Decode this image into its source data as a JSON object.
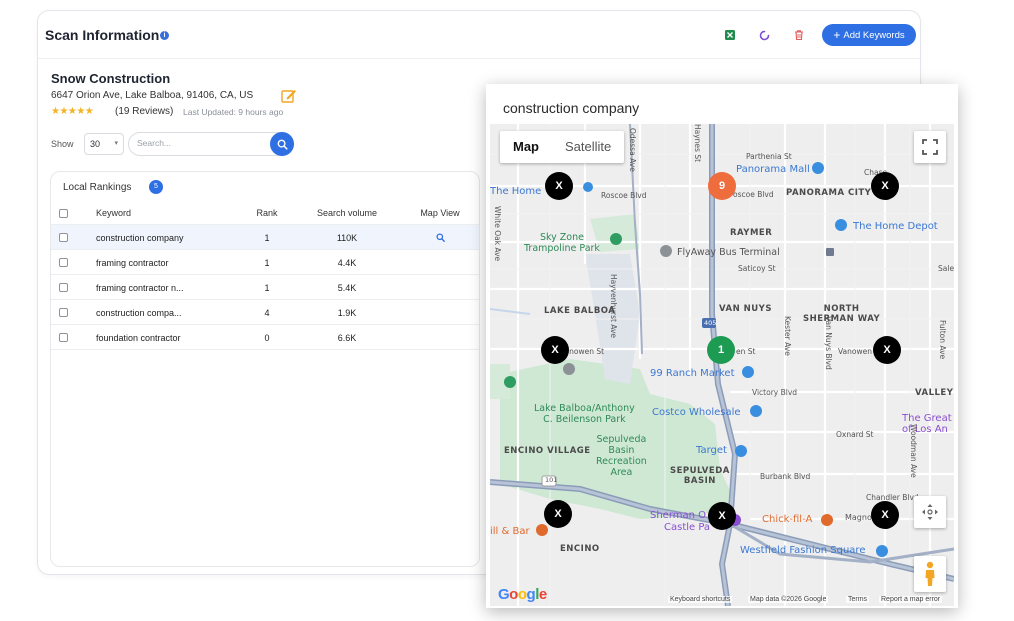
{
  "header": {
    "title": "Scan Information",
    "info_glyph": "i",
    "add_keywords_label": "Add Keywords",
    "add_icon": "+",
    "icons": [
      "excel-icon",
      "refresh-icon",
      "trash-icon"
    ]
  },
  "business": {
    "name": "Snow Construction",
    "address": "6647 Orion Ave, Lake Balboa, 91406, CA, US",
    "rating_stars": "★★★★★",
    "rating": 4.5,
    "reviews": "(19 Reviews)",
    "last_updated": "Last Updated: 9 hours ago"
  },
  "controls": {
    "show_label": "Show",
    "show_value": "30",
    "caret": "▾",
    "search_placeholder": "Search..."
  },
  "rankings": {
    "title": "Local Rankings",
    "count": "5",
    "columns": {
      "keyword": "Keyword",
      "rank": "Rank",
      "volume": "Search volume",
      "map": "Map View"
    },
    "rows": [
      {
        "keyword": "construction company",
        "rank": "1",
        "volume": "110K",
        "map_view": true
      },
      {
        "keyword": "framing contractor",
        "rank": "1",
        "volume": "4.4K",
        "map_view": false
      },
      {
        "keyword": "framing contractor n...",
        "rank": "1",
        "volume": "5.4K",
        "map_view": false
      },
      {
        "keyword": "construction compa...",
        "rank": "4",
        "volume": "1.9K",
        "map_view": false
      },
      {
        "keyword": "foundation contractor",
        "rank": "0",
        "volume": "6.6K",
        "map_view": false
      }
    ]
  },
  "map": {
    "title": "construction company",
    "tabs": {
      "map": "Map",
      "satellite": "Satellite"
    },
    "labels": {
      "parthenia": "Parthenia St",
      "panorama_mall": "Panorama Mall",
      "chase": "Chase",
      "the_home": "The Home",
      "roscoe": "Roscoe Blvd",
      "roscoe2": "oscoe Blvd",
      "panorama_city": "PANORAMA CITY",
      "raymer": "RAYMER",
      "home_depot": "The Home Depot",
      "sky_zone": "Sky Zone\nTrampoline Park",
      "flyaway": "FlyAway Bus Terminal",
      "saticoy": "Saticoy St",
      "white_oak": "White Oak Ave",
      "haynes": "Haynes St",
      "lake_balboa": "LAKE BALBOA",
      "van_nuys": "VAN NUYS",
      "north_sherman_way": "NORTH\nSHERMAN WAY",
      "vanowen": "Vanowen St",
      "vanowen2": "en St",
      "vanowen3": "Vanowen",
      "ranch_market": "99 Ranch Market",
      "victory": "Victory Blvd",
      "valley": "VALLEY",
      "costco": "Costco Wholesale",
      "lake_balboa_park": "Lake Balboa/Anthony\nC. Beilenson Park",
      "the_great": "The Great\nof Los An",
      "encino_village": "ENCINO VILLAGE",
      "sepulveda_basin": "Sepulveda\nBasin\nRecreation\nArea",
      "target": "Target",
      "oxnard": "Oxnard St",
      "sepulveda": "SEPULVEDA\nBASIN",
      "burbank": "Burbank Blvd",
      "chandler": "Chandler Blvd",
      "hwy101": "101",
      "hwy405": "405",
      "sherman_oaks": "Sherman O",
      "castle_park": "Castle Pa",
      "chick_fil_a": "Chick-fil-A",
      "magnolia": "Magno",
      "bar": "ill & Bar",
      "encino": "ENCINO",
      "westfield": "Westfield Fashion Square",
      "kester": "Kester Ave",
      "van_nuys_blvd": "Van Nuys Blvd",
      "fulton": "Fulton Ave",
      "woodman": "Woodman Ave",
      "hayvenhurst": "Hayvenhurst Ave",
      "odessa": "Odessa Ave",
      "sale": "Sale"
    },
    "pins": [
      {
        "label": "X",
        "type": "x"
      },
      {
        "label": "9",
        "type": "orange"
      },
      {
        "label": "X",
        "type": "x"
      },
      {
        "label": "X",
        "type": "x"
      },
      {
        "label": "1",
        "type": "green"
      },
      {
        "label": "X",
        "type": "x"
      },
      {
        "label": "X",
        "type": "x"
      },
      {
        "label": "X",
        "type": "x"
      },
      {
        "label": "X",
        "type": "x"
      }
    ],
    "google": "Google",
    "attribution": {
      "shortcuts": "Keyboard shortcuts",
      "data": "Map data ©2026 Google",
      "terms": "Terms",
      "report": "Report a map error"
    }
  }
}
